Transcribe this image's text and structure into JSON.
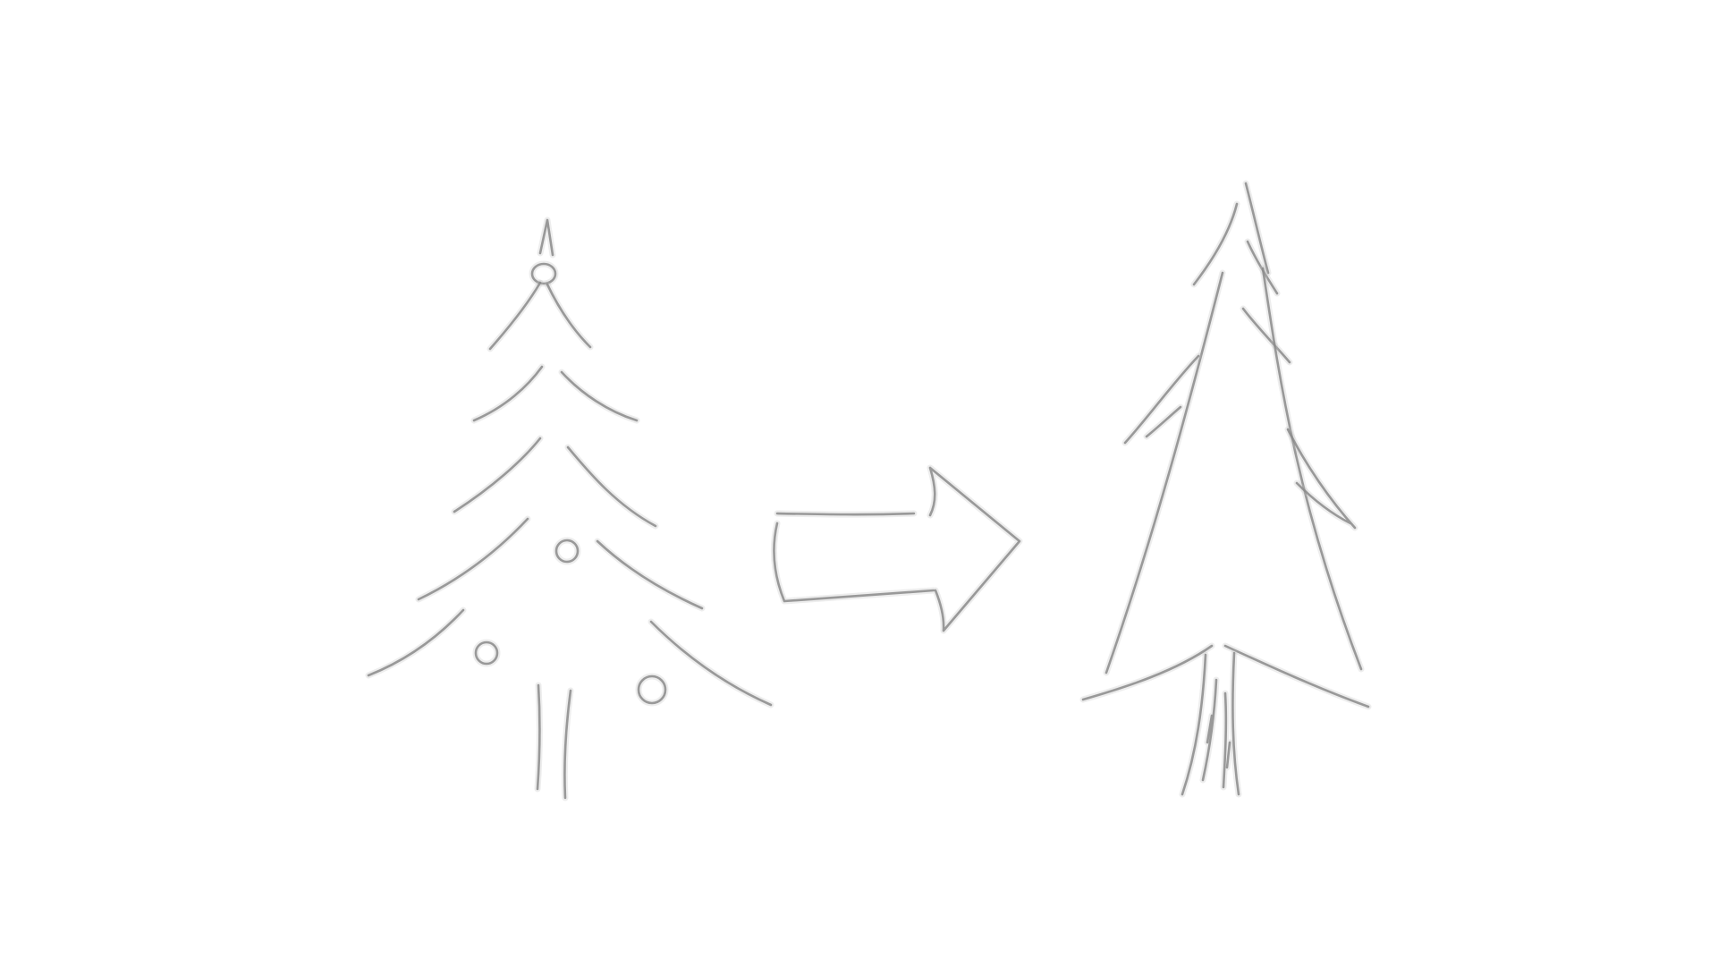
{
  "scene": {
    "description_visible_text": "",
    "colors": {
      "background": "#ffffff",
      "ink": "#8a8a8a",
      "ink_halo": "#bdbdbd"
    },
    "icons": [
      "decorated-christmas-tree-icon",
      "right-arrow-icon",
      "plain-pine-tree-icon"
    ]
  }
}
